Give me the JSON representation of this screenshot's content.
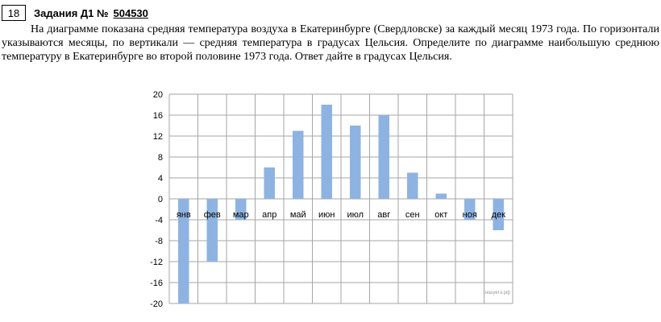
{
  "header": {
    "number": "18",
    "title": "Задания Д1 №",
    "task_id": "504530"
  },
  "problem_text": "На диаграмме показана средняя температура воздуха в Екатеринбурге (Свердловске) за каждый месяц 1973 года. По горизонтали указываются месяцы, по вертикали — средняя температура в градусах Цельсия. Определите по диаграмме наибольшую среднюю температуру в Екатеринбурге во второй половине 1973 года. Ответ дайте в градусах Цельсия.",
  "watermark": "решуегэ.рф",
  "colors": {
    "bar": "#8db3e2",
    "grid": "#a6a6a6"
  },
  "chart_data": {
    "type": "bar",
    "categories": [
      "янв",
      "фев",
      "мар",
      "апр",
      "май",
      "июн",
      "июл",
      "авг",
      "сен",
      "окт",
      "ноя",
      "дек"
    ],
    "values": [
      -20,
      -12,
      -4,
      6,
      13,
      18,
      14,
      16,
      5,
      1,
      -4,
      -6
    ],
    "yticks": [
      20,
      16,
      12,
      8,
      4,
      0,
      -4,
      -8,
      -12,
      -16,
      -20
    ],
    "ylim": [
      -20,
      20
    ],
    "grid": true,
    "title": "",
    "xlabel": "",
    "ylabel": ""
  }
}
